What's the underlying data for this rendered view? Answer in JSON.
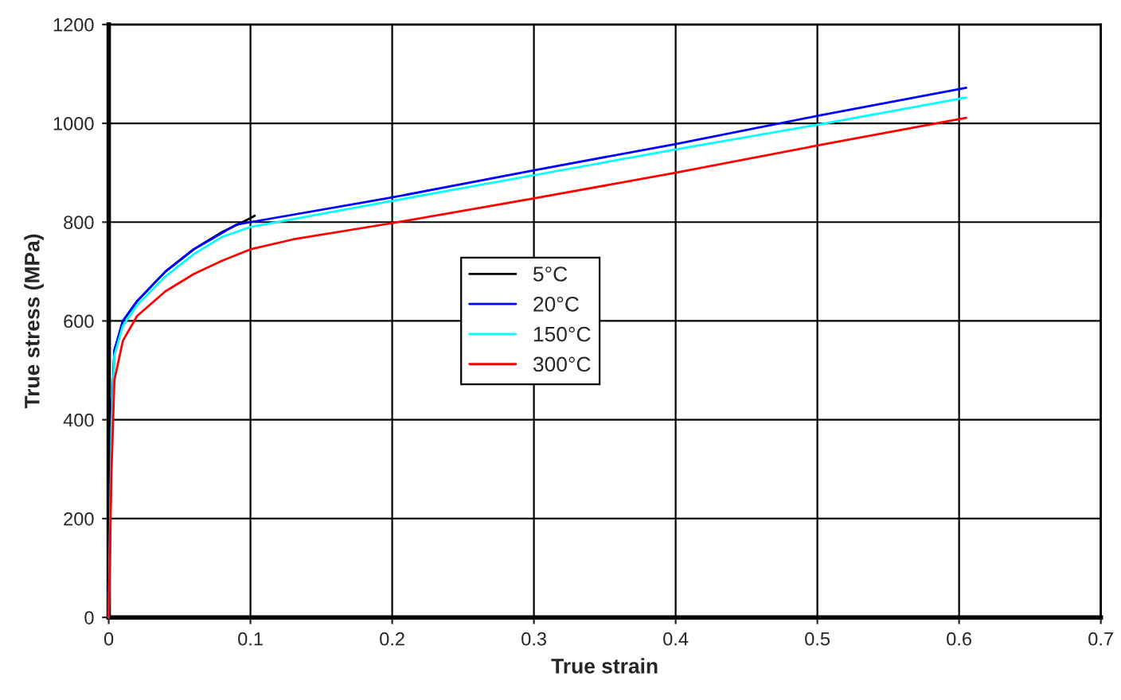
{
  "chart_data": {
    "type": "line",
    "xlabel": "True strain",
    "ylabel": "True stress (MPa)",
    "xlim": [
      0,
      0.7
    ],
    "ylim": [
      0,
      1200
    ],
    "xticks": [
      0,
      0.1,
      0.2,
      0.3,
      0.4,
      0.5,
      0.6,
      0.7
    ],
    "yticks": [
      0,
      200,
      400,
      600,
      800,
      1000,
      1200
    ],
    "grid": true,
    "legend": "center",
    "marker": "none",
    "line_style": "solid",
    "series": [
      {
        "name": "5°C",
        "color": "#000000",
        "x": [
          0,
          0.002,
          0.004,
          0.01,
          0.02,
          0.04,
          0.06,
          0.08,
          0.1,
          0.103
        ],
        "values": [
          0,
          400,
          540,
          600,
          640,
          700,
          745,
          780,
          808,
          813
        ]
      },
      {
        "name": "20°C",
        "color": "#0000ff",
        "x": [
          0,
          0.002,
          0.004,
          0.01,
          0.02,
          0.04,
          0.06,
          0.08,
          0.09,
          0.1,
          0.2,
          0.3,
          0.4,
          0.5,
          0.605
        ],
        "values": [
          0,
          400,
          540,
          600,
          640,
          700,
          745,
          778,
          795,
          800,
          850,
          905,
          958,
          1015,
          1072
        ]
      },
      {
        "name": "150°C",
        "color": "#00ffff",
        "x": [
          0,
          0.002,
          0.004,
          0.01,
          0.02,
          0.04,
          0.06,
          0.08,
          0.1,
          0.2,
          0.3,
          0.4,
          0.5,
          0.605
        ],
        "values": [
          0,
          380,
          530,
          590,
          632,
          690,
          735,
          770,
          790,
          843,
          895,
          947,
          997,
          1052
        ]
      },
      {
        "name": "300°C",
        "color": "#ff0000",
        "x": [
          0,
          0.002,
          0.004,
          0.01,
          0.02,
          0.04,
          0.06,
          0.08,
          0.1,
          0.13,
          0.2,
          0.3,
          0.4,
          0.5,
          0.605
        ],
        "values": [
          0,
          300,
          480,
          560,
          610,
          660,
          695,
          722,
          745,
          765,
          798,
          848,
          900,
          955,
          1011
        ]
      }
    ]
  }
}
